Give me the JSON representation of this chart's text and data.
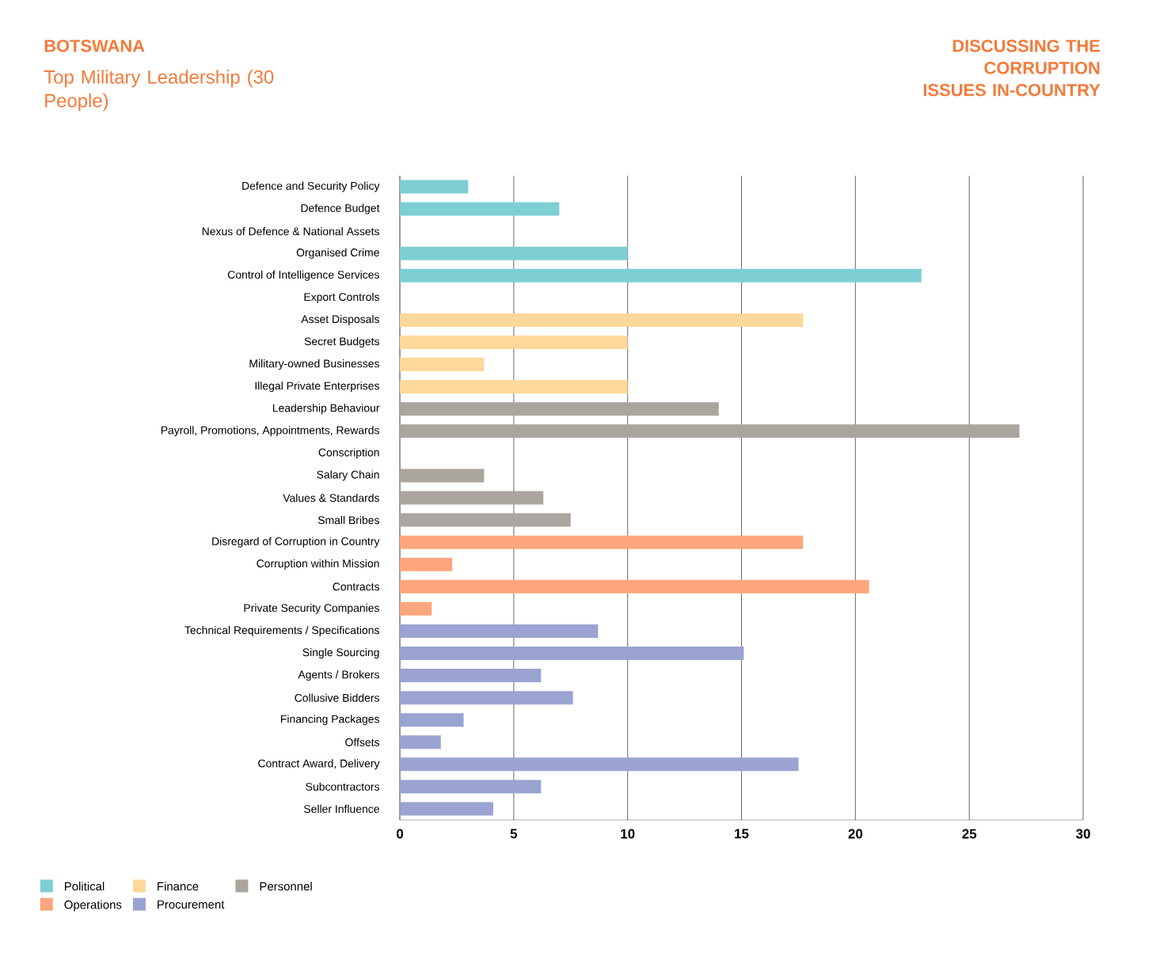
{
  "chart_data": {
    "type": "bar",
    "orientation": "horizontal",
    "title": "BOTSWANA",
    "subtitle": "Top Military Leadership (30 People)",
    "annotations": [
      "DISCUSSING THE CORRUPTION ISSUES IN-COUNTRY"
    ],
    "categories": [
      "Defence and Security Policy",
      "Defence Budget",
      "Nexus of Defence & National Assets",
      "Organised Crime",
      "Control of Intelligence Services",
      "Export Controls",
      "Asset Disposals",
      "Secret Budgets",
      "Military-owned Businesses",
      "Illegal Private Enterprises",
      "Leadership Behaviour",
      "Payroll, Promotions, Appointments, Rewards",
      "Conscription",
      "Salary Chain",
      "Values & Standards",
      "Small Bribes",
      "Disregard of Corruption in Country",
      "Corruption within Mission",
      "Contracts",
      "Private Security Companies",
      "Technical Requirements / Specifications",
      "Single Sourcing",
      "Agents / Brokers",
      "Collusive Bidders",
      "Financing Packages",
      "Offsets",
      "Contract Award, Delivery",
      "Subcontractors",
      "Seller Influence"
    ],
    "series": [
      {
        "name": "Political",
        "color": "#7dcfd4",
        "values": [
          3,
          7,
          0,
          10,
          22.9,
          0,
          null,
          null,
          null,
          null,
          null,
          null,
          null,
          null,
          null,
          null,
          null,
          null,
          null,
          null,
          null,
          null,
          null,
          null,
          null,
          null,
          null,
          null,
          null
        ]
      },
      {
        "name": "Finance",
        "color": "#fdd89a",
        "values": [
          null,
          null,
          null,
          null,
          null,
          null,
          17.7,
          10,
          3.7,
          10,
          null,
          null,
          null,
          null,
          null,
          null,
          null,
          null,
          null,
          null,
          null,
          null,
          null,
          null,
          null,
          null,
          null,
          null,
          null
        ]
      },
      {
        "name": "Personnel",
        "color": "#aba59f",
        "values": [
          null,
          null,
          null,
          null,
          null,
          null,
          null,
          null,
          null,
          null,
          14,
          27.2,
          0,
          3.7,
          6.3,
          7.5,
          null,
          null,
          null,
          null,
          null,
          null,
          null,
          null,
          null,
          null,
          null,
          null,
          null
        ]
      },
      {
        "name": "Operations",
        "color": "#fda67d",
        "values": [
          null,
          null,
          null,
          null,
          null,
          null,
          null,
          null,
          null,
          null,
          null,
          null,
          null,
          null,
          null,
          null,
          17.7,
          2.3,
          20.6,
          1.4,
          null,
          null,
          null,
          null,
          null,
          null,
          null,
          null,
          null
        ]
      },
      {
        "name": "Procurement",
        "color": "#9aa3d1",
        "values": [
          null,
          null,
          null,
          null,
          null,
          null,
          null,
          null,
          null,
          null,
          null,
          null,
          null,
          null,
          null,
          null,
          null,
          null,
          null,
          null,
          8.7,
          15.1,
          6.2,
          7.6,
          2.8,
          1.8,
          17.5,
          6.2,
          4.1
        ]
      }
    ],
    "xlim": [
      0,
      30
    ],
    "xticks": [
      0,
      5,
      10,
      15,
      20,
      25,
      30
    ],
    "grid": "x",
    "legend": "bottom left"
  }
}
